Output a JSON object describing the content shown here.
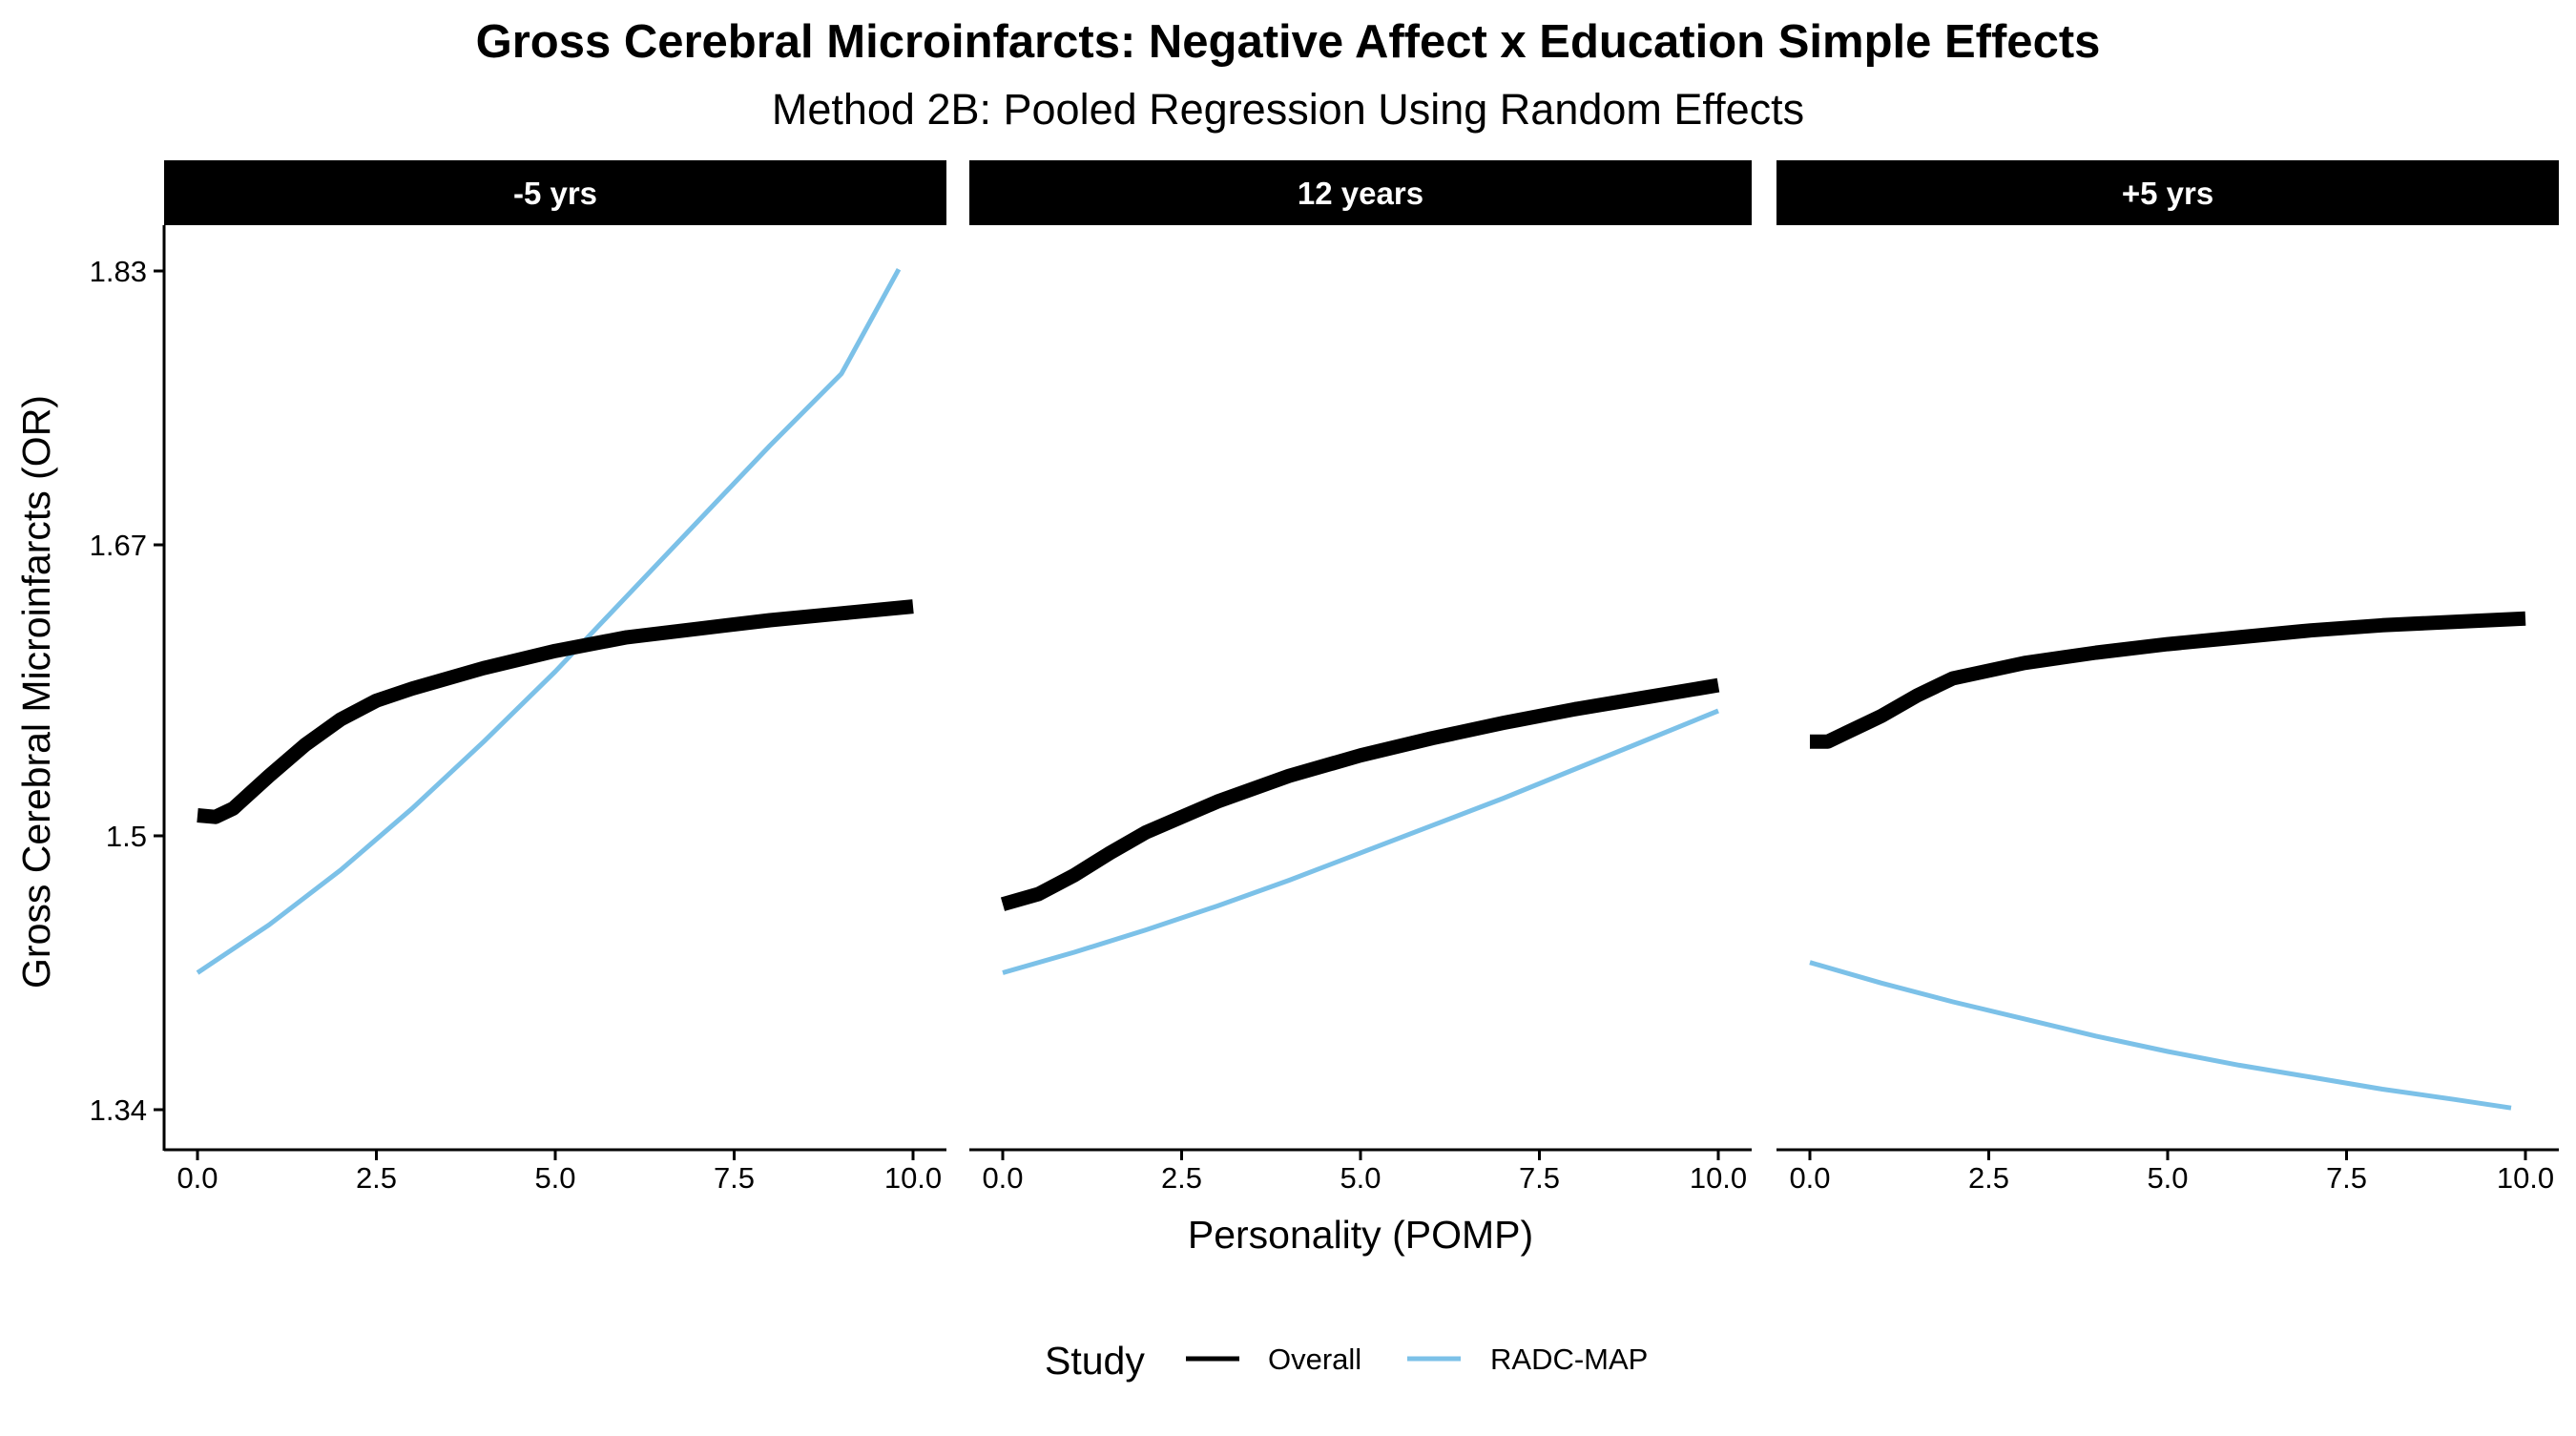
{
  "chart_data": {
    "type": "line",
    "title": "Gross Cerebral Microinfarcts: Negative Affect x Education Simple Effects",
    "subtitle": "Method 2B: Pooled Regression Using Random Effects",
    "xlabel": "Personality (POMP)",
    "ylabel": "Gross Cerebral Microinfarcts (OR)",
    "xlim": [
      0,
      10
    ],
    "ylim": [
      1.34,
      1.83
    ],
    "x_ticks": [
      "0.0",
      "2.5",
      "5.0",
      "7.5",
      "10.0"
    ],
    "y_ticks": [
      "1.34",
      "1.5",
      "1.67",
      "1.83"
    ],
    "y_tick_values": [
      1.34,
      1.5,
      1.67,
      1.83
    ],
    "grid": false,
    "legend": {
      "title": "Study",
      "position": "bottom",
      "entries": [
        {
          "name": "Overall",
          "color": "#000000"
        },
        {
          "name": "RADC-MAP",
          "color": "#7cc1e8"
        }
      ]
    },
    "panels": [
      {
        "label": "-5 yrs",
        "series": [
          {
            "name": "Overall",
            "x": [
              0,
              0.25,
              0.5,
              1,
              1.5,
              2,
              2.5,
              3,
              4,
              5,
              6,
              7,
              8,
              9,
              10
            ],
            "y": [
              1.512,
              1.511,
              1.516,
              1.535,
              1.553,
              1.568,
              1.579,
              1.586,
              1.598,
              1.608,
              1.616,
              1.621,
              1.626,
              1.63,
              1.634
            ]
          },
          {
            "name": "RADC-MAP",
            "x": [
              0,
              1,
              2,
              3,
              4,
              5,
              6,
              7,
              8,
              9,
              9.8
            ],
            "y": [
              1.42,
              1.448,
              1.48,
              1.516,
              1.555,
              1.596,
              1.64,
              1.684,
              1.728,
              1.77,
              1.831
            ]
          }
        ]
      },
      {
        "label": "12 years",
        "series": [
          {
            "name": "Overall",
            "x": [
              0,
              0.5,
              1,
              1.5,
              2,
              3,
              4,
              5,
              6,
              7,
              8,
              9,
              10
            ],
            "y": [
              1.46,
              1.466,
              1.477,
              1.49,
              1.502,
              1.52,
              1.535,
              1.547,
              1.557,
              1.566,
              1.574,
              1.581,
              1.588
            ]
          },
          {
            "name": "RADC-MAP",
            "x": [
              0,
              1,
              2,
              3,
              4,
              5,
              6,
              7,
              8,
              9,
              10
            ],
            "y": [
              1.42,
              1.432,
              1.445,
              1.459,
              1.474,
              1.49,
              1.506,
              1.522,
              1.539,
              1.556,
              1.573
            ]
          }
        ]
      },
      {
        "label": "+5 yrs",
        "series": [
          {
            "name": "Overall",
            "x": [
              0,
              0.25,
              0.5,
              1,
              1.5,
              2,
              3,
              4,
              5,
              6,
              7,
              8,
              9,
              10
            ],
            "y": [
              1.555,
              1.555,
              1.56,
              1.57,
              1.582,
              1.592,
              1.601,
              1.607,
              1.612,
              1.616,
              1.62,
              1.623,
              1.625,
              1.627
            ]
          },
          {
            "name": "RADC-MAP",
            "x": [
              0,
              1,
              2,
              3,
              4,
              5,
              6,
              7,
              8,
              9,
              9.8
            ],
            "y": [
              1.426,
              1.414,
              1.403,
              1.393,
              1.383,
              1.374,
              1.366,
              1.359,
              1.352,
              1.346,
              1.341
            ]
          }
        ]
      }
    ]
  },
  "colors": {
    "overall": "#000000",
    "radc_map": "#7cc1e8",
    "strip_background": "#000000",
    "strip_text": "#ffffff"
  }
}
